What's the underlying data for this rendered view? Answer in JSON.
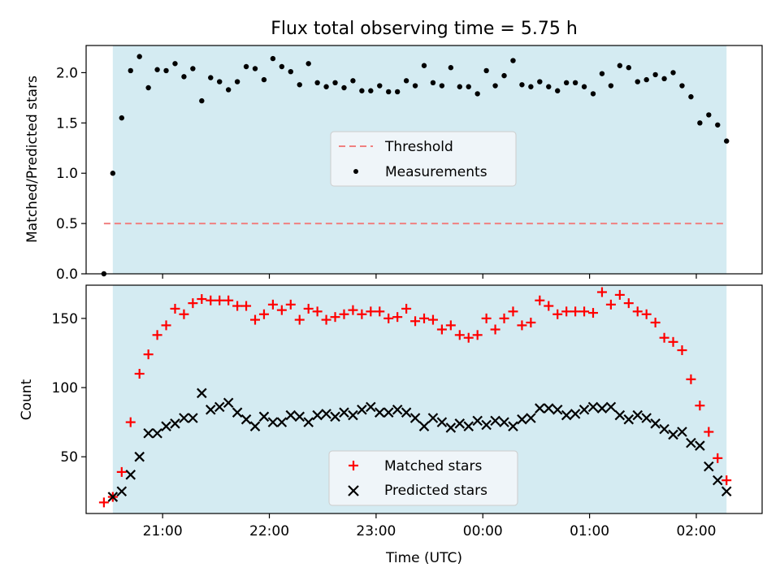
{
  "chart_data": [
    {
      "type": "scatter",
      "title": "Flux total observing time = 5.75 h",
      "xlabel": "",
      "ylabel": "Matched/Predicted stars",
      "ylim": [
        0,
        2.27
      ],
      "yticks": [
        "0.0",
        "0.5",
        "1.0",
        "1.5",
        "2.0"
      ],
      "x_range": [
        "20:17",
        "02:37"
      ],
      "observing_window": [
        "20:32",
        "02:17"
      ],
      "shade_color": "#d4ebf2",
      "legend_position": "center",
      "threshold": {
        "name": "Threshold",
        "value": 0.5,
        "x_range": [
          "20:27",
          "02:17"
        ],
        "color": "#f08080"
      },
      "series": [
        {
          "name": "Measurements",
          "color": "#000000",
          "points": [
            [
              "20:27",
              0.0
            ],
            [
              "20:32",
              1.0
            ],
            [
              "20:37",
              1.55
            ],
            [
              "20:42",
              2.02
            ],
            [
              "20:47",
              2.16
            ],
            [
              "20:52",
              1.85
            ],
            [
              "20:57",
              2.03
            ],
            [
              "21:02",
              2.02
            ],
            [
              "21:07",
              2.09
            ],
            [
              "21:12",
              1.96
            ],
            [
              "21:17",
              2.04
            ],
            [
              "21:22",
              1.72
            ],
            [
              "21:27",
              1.95
            ],
            [
              "21:32",
              1.91
            ],
            [
              "21:37",
              1.83
            ],
            [
              "21:42",
              1.91
            ],
            [
              "21:47",
              2.06
            ],
            [
              "21:52",
              2.04
            ],
            [
              "21:57",
              1.93
            ],
            [
              "22:02",
              2.14
            ],
            [
              "22:07",
              2.06
            ],
            [
              "22:12",
              2.01
            ],
            [
              "22:17",
              1.88
            ],
            [
              "22:22",
              2.09
            ],
            [
              "22:27",
              1.9
            ],
            [
              "22:32",
              1.86
            ],
            [
              "22:37",
              1.9
            ],
            [
              "22:42",
              1.85
            ],
            [
              "22:47",
              1.92
            ],
            [
              "22:52",
              1.82
            ],
            [
              "22:57",
              1.82
            ],
            [
              "23:02",
              1.87
            ],
            [
              "23:07",
              1.81
            ],
            [
              "23:12",
              1.81
            ],
            [
              "23:17",
              1.92
            ],
            [
              "23:22",
              1.87
            ],
            [
              "23:27",
              2.07
            ],
            [
              "23:32",
              1.9
            ],
            [
              "23:37",
              1.87
            ],
            [
              "23:42",
              2.05
            ],
            [
              "23:47",
              1.86
            ],
            [
              "23:52",
              1.86
            ],
            [
              "23:57",
              1.79
            ],
            [
              "00:02",
              2.02
            ],
            [
              "00:07",
              1.87
            ],
            [
              "00:12",
              1.97
            ],
            [
              "00:17",
              2.12
            ],
            [
              "00:22",
              1.88
            ],
            [
              "00:27",
              1.86
            ],
            [
              "00:32",
              1.91
            ],
            [
              "00:37",
              1.86
            ],
            [
              "00:42",
              1.82
            ],
            [
              "00:47",
              1.9
            ],
            [
              "00:52",
              1.9
            ],
            [
              "00:57",
              1.86
            ],
            [
              "01:02",
              1.79
            ],
            [
              "01:07",
              1.99
            ],
            [
              "01:12",
              1.87
            ],
            [
              "01:17",
              2.07
            ],
            [
              "01:22",
              2.05
            ],
            [
              "01:27",
              1.91
            ],
            [
              "01:32",
              1.93
            ],
            [
              "01:37",
              1.98
            ],
            [
              "01:42",
              1.94
            ],
            [
              "01:47",
              2.0
            ],
            [
              "01:52",
              1.87
            ],
            [
              "01:57",
              1.76
            ],
            [
              "02:02",
              1.5
            ],
            [
              "02:07",
              1.58
            ],
            [
              "02:12",
              1.48
            ],
            [
              "02:17",
              1.32
            ]
          ]
        }
      ]
    },
    {
      "type": "scatter",
      "title": "",
      "xlabel": "Time (UTC)",
      "ylabel": "Count",
      "ylim": [
        9,
        174
      ],
      "yticks": [
        "50",
        "100",
        "150"
      ],
      "xticks": [
        "21:00",
        "22:00",
        "23:00",
        "00:00",
        "01:00",
        "02:00"
      ],
      "x_range": [
        "20:17",
        "02:37"
      ],
      "observing_window": [
        "20:32",
        "02:17"
      ],
      "shade_color": "#d4ebf2",
      "legend_position": "lower center",
      "series": [
        {
          "name": "Matched stars",
          "marker": "plus",
          "color": "#ff0000",
          "points": [
            [
              "20:27",
              17
            ],
            [
              "20:32",
              21
            ],
            [
              "20:37",
              39
            ],
            [
              "20:42",
              75
            ],
            [
              "20:47",
              110
            ],
            [
              "20:52",
              124
            ],
            [
              "20:57",
              138
            ],
            [
              "21:02",
              145
            ],
            [
              "21:07",
              157
            ],
            [
              "21:12",
              153
            ],
            [
              "21:17",
              161
            ],
            [
              "21:22",
              164
            ],
            [
              "21:27",
              163
            ],
            [
              "21:32",
              163
            ],
            [
              "21:37",
              163
            ],
            [
              "21:42",
              159
            ],
            [
              "21:47",
              159
            ],
            [
              "21:52",
              149
            ],
            [
              "21:57",
              153
            ],
            [
              "22:02",
              160
            ],
            [
              "22:07",
              156
            ],
            [
              "22:12",
              160
            ],
            [
              "22:17",
              149
            ],
            [
              "22:22",
              157
            ],
            [
              "22:27",
              155
            ],
            [
              "22:32",
              149
            ],
            [
              "22:37",
              151
            ],
            [
              "22:42",
              153
            ],
            [
              "22:47",
              156
            ],
            [
              "22:52",
              153
            ],
            [
              "22:57",
              155
            ],
            [
              "23:02",
              155
            ],
            [
              "23:07",
              150
            ],
            [
              "23:12",
              151
            ],
            [
              "23:17",
              157
            ],
            [
              "23:22",
              148
            ],
            [
              "23:27",
              150
            ],
            [
              "23:32",
              149
            ],
            [
              "23:37",
              142
            ],
            [
              "23:42",
              145
            ],
            [
              "23:47",
              138
            ],
            [
              "23:52",
              136
            ],
            [
              "23:57",
              138
            ],
            [
              "00:02",
              150
            ],
            [
              "00:07",
              142
            ],
            [
              "00:12",
              150
            ],
            [
              "00:17",
              155
            ],
            [
              "00:22",
              145
            ],
            [
              "00:27",
              147
            ],
            [
              "00:32",
              163
            ],
            [
              "00:37",
              159
            ],
            [
              "00:42",
              153
            ],
            [
              "00:47",
              155
            ],
            [
              "00:52",
              155
            ],
            [
              "00:57",
              155
            ],
            [
              "01:02",
              154
            ],
            [
              "01:07",
              169
            ],
            [
              "01:12",
              160
            ],
            [
              "01:17",
              167
            ],
            [
              "01:22",
              161
            ],
            [
              "01:27",
              155
            ],
            [
              "01:32",
              153
            ],
            [
              "01:37",
              147
            ],
            [
              "01:42",
              136
            ],
            [
              "01:47",
              133
            ],
            [
              "01:52",
              127
            ],
            [
              "01:57",
              106
            ],
            [
              "02:02",
              87
            ],
            [
              "02:07",
              68
            ],
            [
              "02:12",
              49
            ],
            [
              "02:17",
              33
            ]
          ]
        },
        {
          "name": "Predicted stars",
          "marker": "x",
          "color": "#000000",
          "points": [
            [
              "20:32",
              21
            ],
            [
              "20:37",
              25
            ],
            [
              "20:42",
              37
            ],
            [
              "20:47",
              50
            ],
            [
              "20:52",
              67
            ],
            [
              "20:57",
              67
            ],
            [
              "21:02",
              72
            ],
            [
              "21:07",
              74
            ],
            [
              "21:12",
              78
            ],
            [
              "21:17",
              78
            ],
            [
              "21:22",
              96
            ],
            [
              "21:27",
              84
            ],
            [
              "21:32",
              86
            ],
            [
              "21:37",
              89
            ],
            [
              "21:42",
              82
            ],
            [
              "21:47",
              77
            ],
            [
              "21:52",
              72
            ],
            [
              "21:57",
              79
            ],
            [
              "22:02",
              75
            ],
            [
              "22:07",
              75
            ],
            [
              "22:12",
              80
            ],
            [
              "22:17",
              79
            ],
            [
              "22:22",
              75
            ],
            [
              "22:27",
              80
            ],
            [
              "22:32",
              81
            ],
            [
              "22:37",
              79
            ],
            [
              "22:42",
              82
            ],
            [
              "22:47",
              80
            ],
            [
              "22:52",
              84
            ],
            [
              "22:57",
              86
            ],
            [
              "23:02",
              82
            ],
            [
              "23:07",
              82
            ],
            [
              "23:12",
              84
            ],
            [
              "23:17",
              82
            ],
            [
              "23:22",
              78
            ],
            [
              "23:27",
              72
            ],
            [
              "23:32",
              78
            ],
            [
              "23:37",
              75
            ],
            [
              "23:42",
              71
            ],
            [
              "23:47",
              74
            ],
            [
              "23:52",
              72
            ],
            [
              "23:57",
              76
            ],
            [
              "00:02",
              73
            ],
            [
              "00:07",
              76
            ],
            [
              "00:12",
              75
            ],
            [
              "00:17",
              72
            ],
            [
              "00:22",
              77
            ],
            [
              "00:27",
              78
            ],
            [
              "00:32",
              85
            ],
            [
              "00:37",
              85
            ],
            [
              "00:42",
              84
            ],
            [
              "00:47",
              80
            ],
            [
              "00:52",
              81
            ],
            [
              "00:57",
              84
            ],
            [
              "01:02",
              86
            ],
            [
              "01:07",
              85
            ],
            [
              "01:12",
              86
            ],
            [
              "01:17",
              80
            ],
            [
              "01:22",
              77
            ],
            [
              "01:27",
              80
            ],
            [
              "01:32",
              78
            ],
            [
              "01:37",
              74
            ],
            [
              "01:42",
              70
            ],
            [
              "01:47",
              66
            ],
            [
              "01:52",
              68
            ],
            [
              "01:57",
              60
            ],
            [
              "02:02",
              58
            ],
            [
              "02:07",
              43
            ],
            [
              "02:12",
              33
            ],
            [
              "02:17",
              25
            ]
          ]
        }
      ]
    }
  ]
}
